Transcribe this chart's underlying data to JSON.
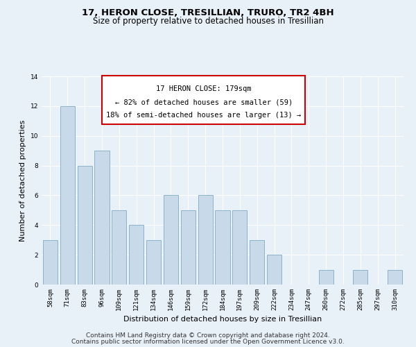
{
  "title": "17, HERON CLOSE, TRESILLIAN, TRURO, TR2 4BH",
  "subtitle": "Size of property relative to detached houses in Tresillian",
  "xlabel": "Distribution of detached houses by size in Tresillian",
  "ylabel": "Number of detached properties",
  "categories": [
    "58sqm",
    "71sqm",
    "83sqm",
    "96sqm",
    "109sqm",
    "121sqm",
    "134sqm",
    "146sqm",
    "159sqm",
    "172sqm",
    "184sqm",
    "197sqm",
    "209sqm",
    "222sqm",
    "234sqm",
    "247sqm",
    "260sqm",
    "272sqm",
    "285sqm",
    "297sqm",
    "310sqm"
  ],
  "values": [
    3,
    12,
    8,
    9,
    5,
    4,
    3,
    6,
    5,
    6,
    5,
    5,
    3,
    2,
    0,
    0,
    1,
    0,
    1,
    0,
    1
  ],
  "bar_color": "#c8d9ea",
  "bar_edge_color": "#8ab4cc",
  "bg_color": "#e8f0f8",
  "grid_color": "#ffffff",
  "annotation_line1": "17 HERON CLOSE: 179sqm",
  "annotation_line2": "← 82% of detached houses are smaller (59)",
  "annotation_line3": "18% of semi-detached houses are larger (13) →",
  "annotation_box_color": "#cc0000",
  "ylim": [
    0,
    14
  ],
  "yticks": [
    0,
    2,
    4,
    6,
    8,
    10,
    12,
    14
  ],
  "footnote_line1": "Contains HM Land Registry data © Crown copyright and database right 2024.",
  "footnote_line2": "Contains public sector information licensed under the Open Government Licence v3.0.",
  "title_fontsize": 9.5,
  "subtitle_fontsize": 8.5,
  "ylabel_fontsize": 8,
  "xlabel_fontsize": 8,
  "tick_fontsize": 6.5,
  "annot_fontsize": 7.5,
  "footnote_fontsize": 6.5
}
